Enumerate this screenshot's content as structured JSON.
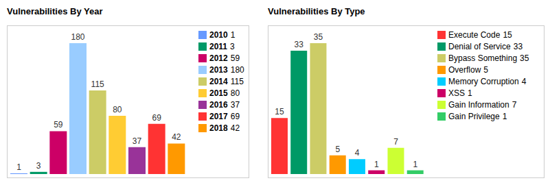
{
  "chart_data": [
    {
      "type": "bar",
      "title": "Vulnerabilities By Year",
      "categories": [
        "2010",
        "2011",
        "2012",
        "2013",
        "2014",
        "2015",
        "2016",
        "2017",
        "2018"
      ],
      "values": [
        1,
        3,
        59,
        180,
        115,
        80,
        37,
        69,
        42
      ],
      "colors": [
        "#6699ff",
        "#009966",
        "#cc0066",
        "#99ccff",
        "#cccc66",
        "#ffcc33",
        "#993399",
        "#ff3333",
        "#ff9900"
      ],
      "ylim": [
        0,
        180
      ],
      "data_labels": true,
      "tick_labels": false,
      "legend": "right"
    },
    {
      "type": "bar",
      "title": "Vulnerabilities By Type",
      "categories": [
        "Execute Code",
        "Denial of Service",
        "Bypass Something",
        "Overflow",
        "Memory Corruption",
        "XSS",
        "Gain Information",
        "Gain Privilege"
      ],
      "values": [
        15,
        33,
        35,
        5,
        4,
        1,
        7,
        1
      ],
      "colors": [
        "#ff3333",
        "#009966",
        "#cccc66",
        "#ff9900",
        "#00ccff",
        "#cc0066",
        "#ccff33",
        "#33cc66"
      ],
      "ylim": [
        0,
        35
      ],
      "data_labels": true,
      "tick_labels": false,
      "legend": "right"
    }
  ]
}
